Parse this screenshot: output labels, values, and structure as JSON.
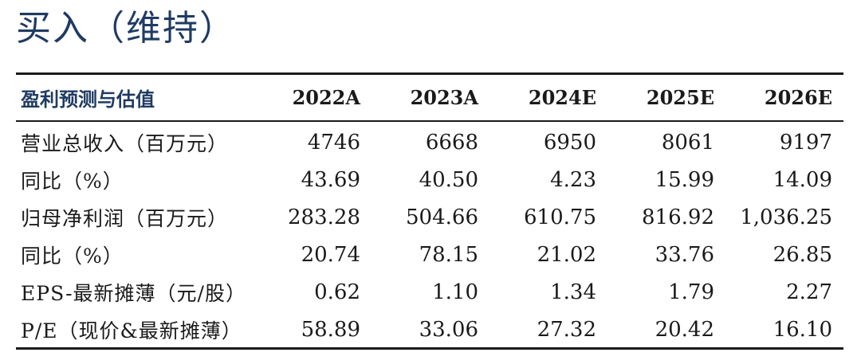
{
  "title": "买入（维持）",
  "table": {
    "headers": [
      "盈利预测与估值",
      "2022A",
      "2023A",
      "2024E",
      "2025E",
      "2026E"
    ],
    "rows": [
      {
        "label": "营业总收入（百万元）",
        "values": [
          "4746",
          "6668",
          "6950",
          "8061",
          "9197"
        ]
      },
      {
        "label": "同比（%）",
        "values": [
          "43.69",
          "40.50",
          "4.23",
          "15.99",
          "14.09"
        ]
      },
      {
        "label": "归母净利润（百万元）",
        "values": [
          "283.28",
          "504.66",
          "610.75",
          "816.92",
          "1,036.25"
        ]
      },
      {
        "label": "同比（%）",
        "values": [
          "20.74",
          "78.15",
          "21.02",
          "33.76",
          "26.85"
        ]
      },
      {
        "label": "EPS-最新摊薄（元/股）",
        "values": [
          "0.62",
          "1.10",
          "1.34",
          "1.79",
          "2.27"
        ]
      },
      {
        "label": "P/E（现价&最新摊薄）",
        "values": [
          "58.89",
          "33.06",
          "27.32",
          "20.42",
          "16.10"
        ]
      }
    ]
  },
  "colors": {
    "title": "#1f3b63",
    "header_label": "#1f3b63",
    "text": "#1a1a1a",
    "rule": "#1a1a1a"
  }
}
